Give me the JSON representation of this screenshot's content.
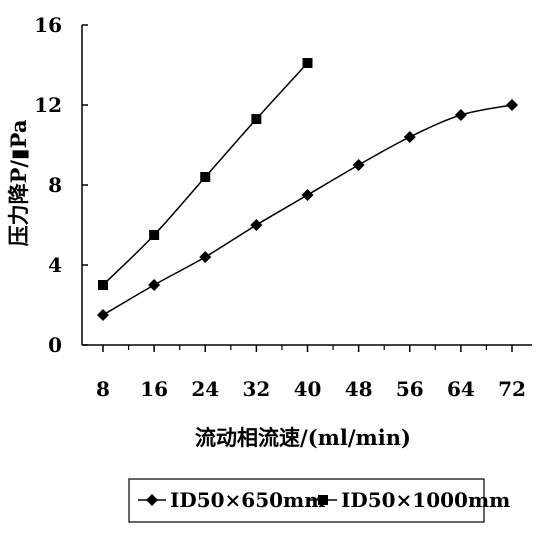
{
  "chart_data": {
    "type": "line",
    "xlabel": "流动相流速/(ml/min)",
    "ylabel": "压力降P/▮Pa",
    "x_ticks": [
      "8",
      "16",
      "24",
      "32",
      "40",
      "48",
      "56",
      "64",
      "72"
    ],
    "y_ticks": [
      "0",
      "4",
      "8",
      "12",
      "16"
    ],
    "xlim": [
      8,
      72
    ],
    "ylim": [
      0,
      16
    ],
    "grid": false,
    "legend_position": "bottom",
    "series": [
      {
        "name": "ID50×650mm",
        "marker": "diamond",
        "x": [
          8,
          16,
          24,
          32,
          40,
          48,
          56,
          64,
          72
        ],
        "y": [
          1.5,
          3.0,
          4.4,
          6.0,
          7.5,
          9.0,
          10.4,
          11.5,
          12.0
        ]
      },
      {
        "name": "ID50×1000mm",
        "marker": "square",
        "x": [
          8,
          16,
          24,
          32,
          40
        ],
        "y": [
          3.0,
          5.5,
          8.4,
          11.3,
          14.1
        ]
      }
    ]
  },
  "colors": {
    "line": "#000000",
    "background": "#ffffff"
  }
}
